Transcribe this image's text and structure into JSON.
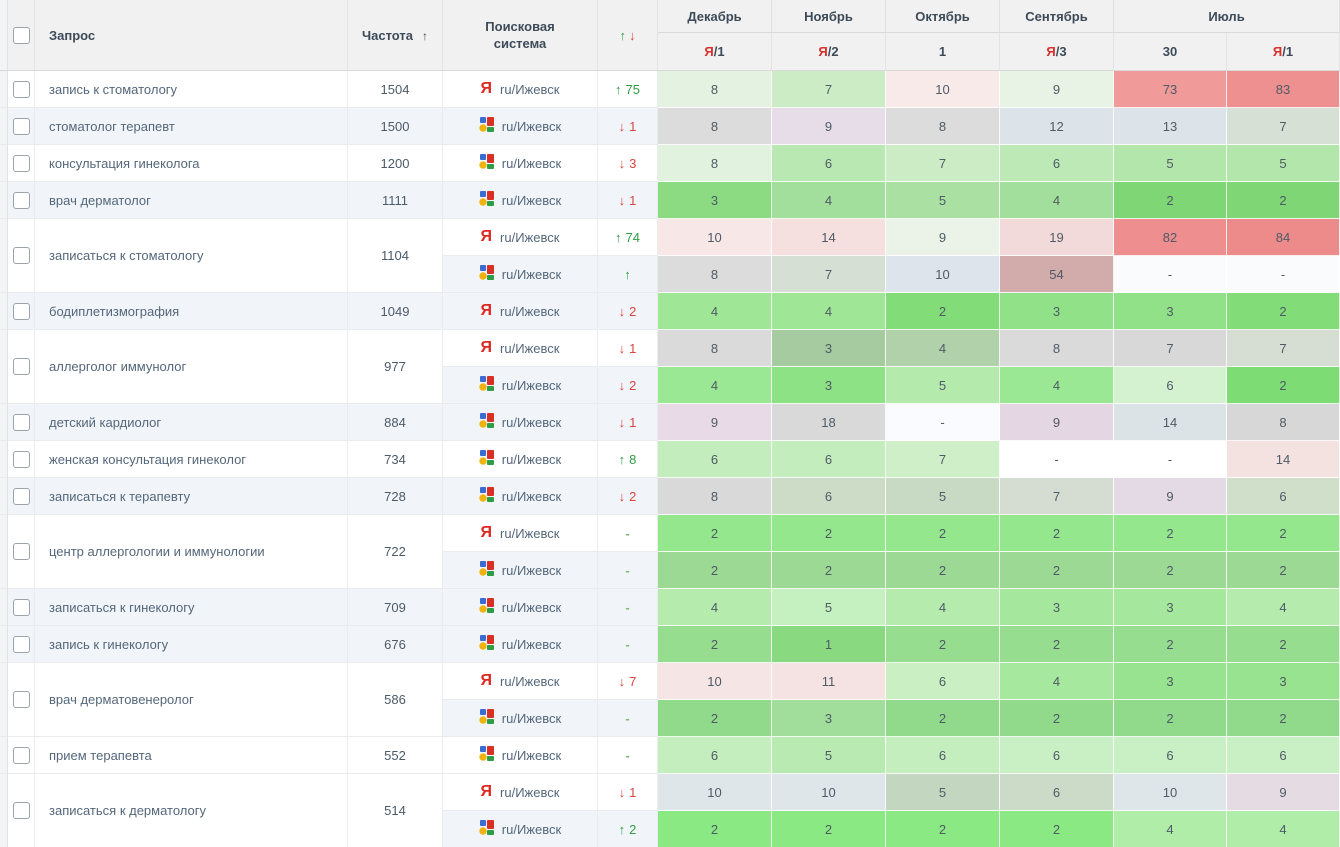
{
  "colors": {
    "alt_row": "#f1f5f9",
    "header_bg": "#f1f1f1",
    "up_green": "#2f9e44",
    "down_red": "#d9453d",
    "yandex_red": "#e0271f"
  },
  "header": {
    "columns": {
      "query": "Запрос",
      "frequency": "Частота",
      "sort_arrow": "↑",
      "engine": "Поисковая система",
      "change_up": "↑",
      "change_down": "↓"
    },
    "periods": [
      {
        "month": "Декабрь",
        "sub": [
          {
            "ya": "Я",
            "text": "/1"
          }
        ]
      },
      {
        "month": "Ноябрь",
        "sub": [
          {
            "ya": "Я",
            "text": "/2"
          }
        ]
      },
      {
        "month": "Октябрь",
        "sub": [
          {
            "ya": "",
            "text": "1"
          }
        ]
      },
      {
        "month": "Сентябрь",
        "sub": [
          {
            "ya": "Я",
            "text": "/3"
          }
        ]
      },
      {
        "month": "Июль",
        "sub": [
          {
            "ya": "",
            "text": "30"
          },
          {
            "ya": "Я",
            "text": "/1"
          }
        ]
      }
    ]
  },
  "engine_region_label": "ru/Ижевск",
  "queries": [
    {
      "query": "запись к стоматологу",
      "frequency": "1504",
      "alt": false,
      "engines": [
        {
          "engine": "yandex",
          "change": {
            "dir": "up",
            "value": "75"
          },
          "alt": false,
          "cells": [
            [
              "8",
              "#e4f3e1"
            ],
            [
              "7",
              "#ccecc6"
            ],
            [
              "10",
              "#f9eaea"
            ],
            [
              "9",
              "#e8f3e5"
            ],
            [
              "73",
              "#f09a9a"
            ],
            [
              "83",
              "#ee9090"
            ]
          ]
        }
      ]
    },
    {
      "query": "стоматолог терапевт",
      "frequency": "1500",
      "alt": true,
      "engines": [
        {
          "engine": "google",
          "change": {
            "dir": "down",
            "value": "1"
          },
          "alt": true,
          "cells": [
            [
              "8",
              "#dcdcdc"
            ],
            [
              "9",
              "#e6dde9"
            ],
            [
              "8",
              "#dcdcdc"
            ],
            [
              "12",
              "#dce3e9"
            ],
            [
              "13",
              "#dce3e9"
            ],
            [
              "7",
              "#d7e0d5"
            ]
          ]
        }
      ]
    },
    {
      "query": "консультация гинеколога",
      "frequency": "1200",
      "alt": false,
      "engines": [
        {
          "engine": "google",
          "change": {
            "dir": "down",
            "value": "3"
          },
          "alt": false,
          "cells": [
            [
              "8",
              "#e1f2de"
            ],
            [
              "6",
              "#b9e8b2"
            ],
            [
              "7",
              "#ccecc6"
            ],
            [
              "6",
              "#bce9b5"
            ],
            [
              "5",
              "#b2e6ab"
            ],
            [
              "5",
              "#b2e6ab"
            ]
          ]
        }
      ]
    },
    {
      "query": "врач дерматолог",
      "frequency": "1111",
      "alt": true,
      "engines": [
        {
          "engine": "google",
          "change": {
            "dir": "down",
            "value": "1"
          },
          "alt": true,
          "cells": [
            [
              "3",
              "#8cdb83"
            ],
            [
              "4",
              "#a3df9c"
            ],
            [
              "5",
              "#aae1a3"
            ],
            [
              "4",
              "#a3df9c"
            ],
            [
              "2",
              "#7ed674"
            ],
            [
              "2",
              "#7ed674"
            ]
          ]
        }
      ]
    },
    {
      "query": "записаться к стоматологу",
      "frequency": "1104",
      "alt": false,
      "engines": [
        {
          "engine": "yandex",
          "change": {
            "dir": "up",
            "value": "74"
          },
          "alt": false,
          "cells": [
            [
              "10",
              "#f7e7e7"
            ],
            [
              "14",
              "#f5dfdf"
            ],
            [
              "9",
              "#ebf2e8"
            ],
            [
              "19",
              "#f2dada"
            ],
            [
              "82",
              "#ee8e8e"
            ],
            [
              "84",
              "#ed8b8b"
            ]
          ]
        },
        {
          "engine": "google",
          "change": {
            "dir": "up",
            "value": ""
          },
          "alt": true,
          "cells": [
            [
              "8",
              "#dcdcdc"
            ],
            [
              "7",
              "#d6dfd4"
            ],
            [
              "10",
              "#dde4eb"
            ],
            [
              "54",
              "#d2abab"
            ],
            [
              "-",
              "#fafbfd"
            ],
            [
              "-",
              "#fafbfd"
            ]
          ]
        }
      ]
    },
    {
      "query": "бодиплетизмография",
      "frequency": "1049",
      "alt": true,
      "engines": [
        {
          "engine": "yandex",
          "change": {
            "dir": "down",
            "value": "2"
          },
          "alt": true,
          "cells": [
            [
              "4",
              "#9fe797"
            ],
            [
              "4",
              "#9fe797"
            ],
            [
              "2",
              "#82dc78"
            ],
            [
              "3",
              "#91e188"
            ],
            [
              "3",
              "#91e188"
            ],
            [
              "2",
              "#82dc78"
            ]
          ]
        }
      ]
    },
    {
      "query": "аллерголог иммунолог",
      "frequency": "977",
      "alt": false,
      "engines": [
        {
          "engine": "yandex",
          "change": {
            "dir": "down",
            "value": "1"
          },
          "alt": false,
          "cells": [
            [
              "8",
              "#dadada"
            ],
            [
              "3",
              "#a6cba0"
            ],
            [
              "4",
              "#b1d1ab"
            ],
            [
              "8",
              "#dadada"
            ],
            [
              "7",
              "#d8d8d8"
            ],
            [
              "7",
              "#d6ded4"
            ]
          ]
        },
        {
          "engine": "google",
          "change": {
            "dir": "down",
            "value": "2"
          },
          "alt": true,
          "cells": [
            [
              "4",
              "#9be894"
            ],
            [
              "3",
              "#8ee286"
            ],
            [
              "5",
              "#b4ebad"
            ],
            [
              "4",
              "#9be894"
            ],
            [
              "6",
              "#d5f2d0"
            ],
            [
              "2",
              "#7edc74"
            ]
          ]
        }
      ]
    },
    {
      "query": "детский кардиолог",
      "frequency": "884",
      "alt": true,
      "engines": [
        {
          "engine": "google",
          "change": {
            "dir": "down",
            "value": "1"
          },
          "alt": true,
          "cells": [
            [
              "9",
              "#e9dae7"
            ],
            [
              "18",
              "#d9d9d9"
            ],
            [
              "-",
              "#fafbfe"
            ],
            [
              "9",
              "#e4d6e2"
            ],
            [
              "14",
              "#dbe3e6"
            ],
            [
              "8",
              "#d7d7d7"
            ]
          ]
        }
      ]
    },
    {
      "query": "женская консультация гинеколог",
      "frequency": "734",
      "alt": false,
      "engines": [
        {
          "engine": "google",
          "change": {
            "dir": "up",
            "value": "8"
          },
          "alt": false,
          "cells": [
            [
              "6",
              "#c4edbe"
            ],
            [
              "6",
              "#c4edbe"
            ],
            [
              "7",
              "#cfefc9"
            ],
            [
              "-",
              "#ffffff"
            ],
            [
              "-",
              "#ffffff"
            ],
            [
              "14",
              "#f3e2e0"
            ]
          ]
        }
      ]
    },
    {
      "query": "записаться к терапевту",
      "frequency": "728",
      "alt": true,
      "engines": [
        {
          "engine": "google",
          "change": {
            "dir": "down",
            "value": "2"
          },
          "alt": true,
          "cells": [
            [
              "8",
              "#d9d9d9"
            ],
            [
              "6",
              "#ccdcc7"
            ],
            [
              "5",
              "#c8dac3"
            ],
            [
              "7",
              "#d5ddd3"
            ],
            [
              "9",
              "#e3dae6"
            ],
            [
              "6",
              "#cfdfca"
            ]
          ]
        }
      ]
    },
    {
      "query": "центр аллергологии и иммунологии",
      "frequency": "722",
      "alt": false,
      "engines": [
        {
          "engine": "yandex",
          "change": {
            "dir": "dash",
            "value": ""
          },
          "alt": false,
          "cells": [
            [
              "2",
              "#94e78c"
            ],
            [
              "2",
              "#94e78c"
            ],
            [
              "2",
              "#94e78c"
            ],
            [
              "2",
              "#94e78c"
            ],
            [
              "2",
              "#94e78c"
            ],
            [
              "2",
              "#94e78c"
            ]
          ]
        },
        {
          "engine": "google",
          "change": {
            "dir": "dash",
            "value": ""
          },
          "alt": true,
          "cells": [
            [
              "2",
              "#9cd995"
            ],
            [
              "2",
              "#9cd995"
            ],
            [
              "2",
              "#9cd995"
            ],
            [
              "2",
              "#9cd995"
            ],
            [
              "2",
              "#9cd995"
            ],
            [
              "2",
              "#9cd995"
            ]
          ]
        }
      ]
    },
    {
      "query": "записаться к гинекологу",
      "frequency": "709",
      "alt": true,
      "engines": [
        {
          "engine": "google",
          "change": {
            "dir": "dash",
            "value": ""
          },
          "alt": true,
          "cells": [
            [
              "4",
              "#b5ecae"
            ],
            [
              "5",
              "#c5f0bf"
            ],
            [
              "4",
              "#b5ecae"
            ],
            [
              "3",
              "#a5e89d"
            ],
            [
              "3",
              "#a5e89d"
            ],
            [
              "4",
              "#b5ecae"
            ]
          ]
        }
      ]
    },
    {
      "query": "запись к гинекологу",
      "frequency": "676",
      "alt": true,
      "engines": [
        {
          "engine": "google",
          "change": {
            "dir": "dash",
            "value": ""
          },
          "alt": true,
          "cells": [
            [
              "2",
              "#96dd8f"
            ],
            [
              "1",
              "#89d981"
            ],
            [
              "2",
              "#96dd8f"
            ],
            [
              "2",
              "#96dd8f"
            ],
            [
              "2",
              "#96dd8f"
            ],
            [
              "2",
              "#96dd8f"
            ]
          ]
        }
      ]
    },
    {
      "query": "врач дерматовенеролог",
      "frequency": "586",
      "alt": false,
      "engines": [
        {
          "engine": "yandex",
          "change": {
            "dir": "down",
            "value": "7"
          },
          "alt": false,
          "cells": [
            [
              "10",
              "#f6e5e5"
            ],
            [
              "11",
              "#f5e2e2"
            ],
            [
              "6",
              "#c9efc3"
            ],
            [
              "4",
              "#a7e89f"
            ],
            [
              "3",
              "#97e38f"
            ],
            [
              "3",
              "#97e38f"
            ]
          ]
        },
        {
          "engine": "google",
          "change": {
            "dir": "dash",
            "value": ""
          },
          "alt": true,
          "cells": [
            [
              "2",
              "#92da8b"
            ],
            [
              "3",
              "#a2de9b"
            ],
            [
              "2",
              "#92da8b"
            ],
            [
              "2",
              "#92da8b"
            ],
            [
              "2",
              "#92da8b"
            ],
            [
              "2",
              "#92da8b"
            ]
          ]
        }
      ]
    },
    {
      "query": "прием терапевта",
      "frequency": "552",
      "alt": false,
      "engines": [
        {
          "engine": "google",
          "change": {
            "dir": "dash",
            "value": ""
          },
          "alt": false,
          "cells": [
            [
              "6",
              "#c5eebf"
            ],
            [
              "5",
              "#b8eab1"
            ],
            [
              "6",
              "#c5eebf"
            ],
            [
              "6",
              "#c9efc4"
            ],
            [
              "6",
              "#c9efc4"
            ],
            [
              "6",
              "#c9efc4"
            ]
          ]
        }
      ]
    },
    {
      "query": "записаться к дерматологу",
      "frequency": "514",
      "alt": false,
      "engines": [
        {
          "engine": "yandex",
          "change": {
            "dir": "down",
            "value": "1"
          },
          "alt": false,
          "cells": [
            [
              "10",
              "#dee6ea"
            ],
            [
              "10",
              "#dee6ea"
            ],
            [
              "5",
              "#c3d6bf"
            ],
            [
              "6",
              "#ccdbc7"
            ],
            [
              "10",
              "#dee6ea"
            ],
            [
              "9",
              "#e5dbe3"
            ]
          ]
        },
        {
          "engine": "google",
          "change": {
            "dir": "up",
            "value": "2"
          },
          "alt": true,
          "cells": [
            [
              "2",
              "#8ae982"
            ],
            [
              "2",
              "#8ae982"
            ],
            [
              "2",
              "#8ae982"
            ],
            [
              "2",
              "#8ae982"
            ],
            [
              "4",
              "#b0eda9"
            ],
            [
              "4",
              "#b0eda9"
            ]
          ]
        }
      ]
    }
  ]
}
